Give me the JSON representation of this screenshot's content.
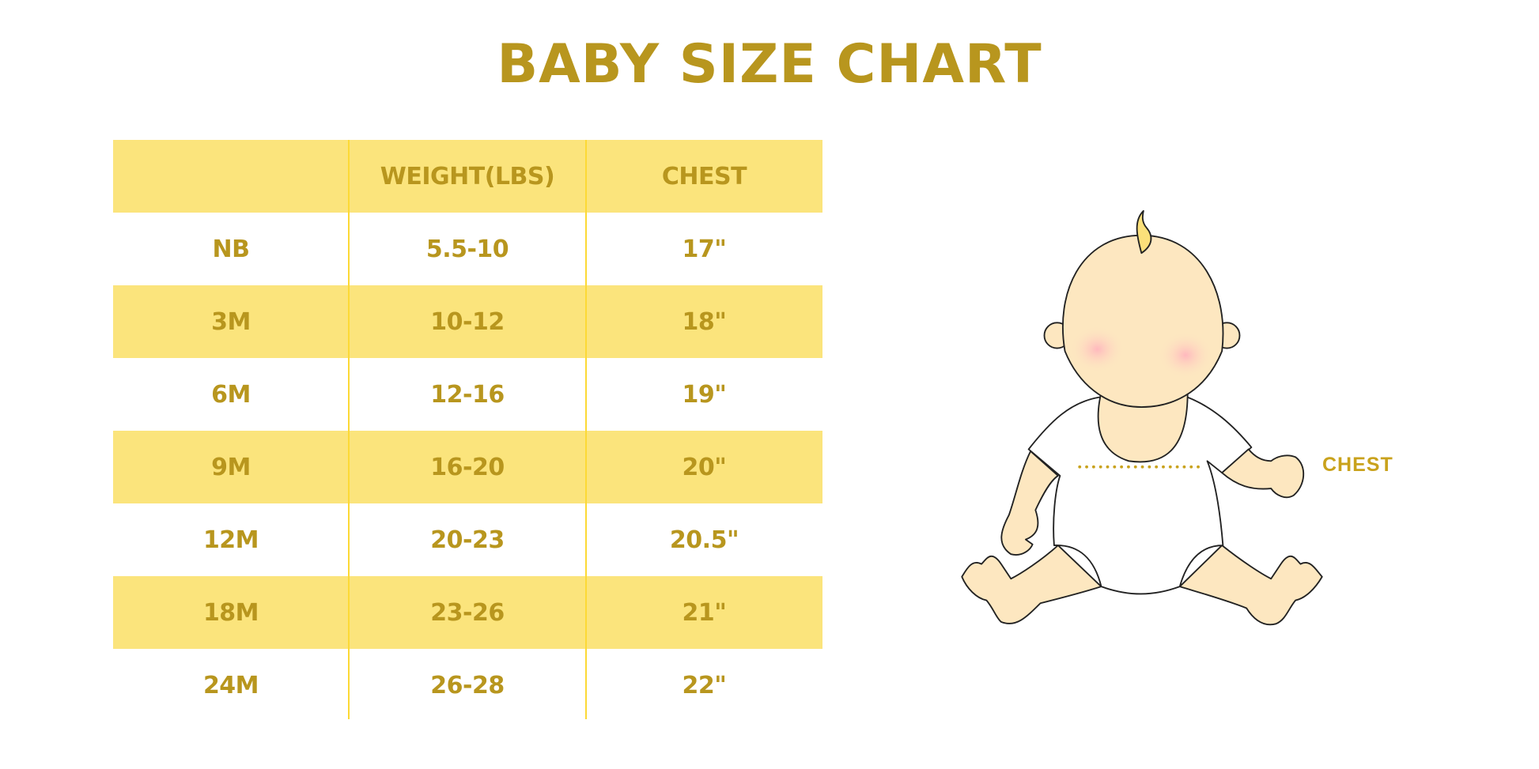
{
  "title": "BABY SIZE CHART",
  "table": {
    "headers": [
      "",
      "WEIGHT(LBS)",
      "CHEST"
    ],
    "rows": [
      [
        "NB",
        "5.5-10",
        "17\""
      ],
      [
        "3M",
        "10-12",
        "18\""
      ],
      [
        "6M",
        "12-16",
        "19\""
      ],
      [
        "9M",
        "16-20",
        "20\""
      ],
      [
        "12M",
        "20-23",
        "20.5\""
      ],
      [
        "18M",
        "23-26",
        "21\""
      ],
      [
        "24M",
        "26-28",
        "22\""
      ]
    ]
  },
  "illustration": {
    "chest_label": "CHEST"
  },
  "colors": {
    "accent_text": "#B8961E",
    "row_fill": "#FBE47C",
    "divider": "#FCD935",
    "skin": "#FDE7C0"
  }
}
